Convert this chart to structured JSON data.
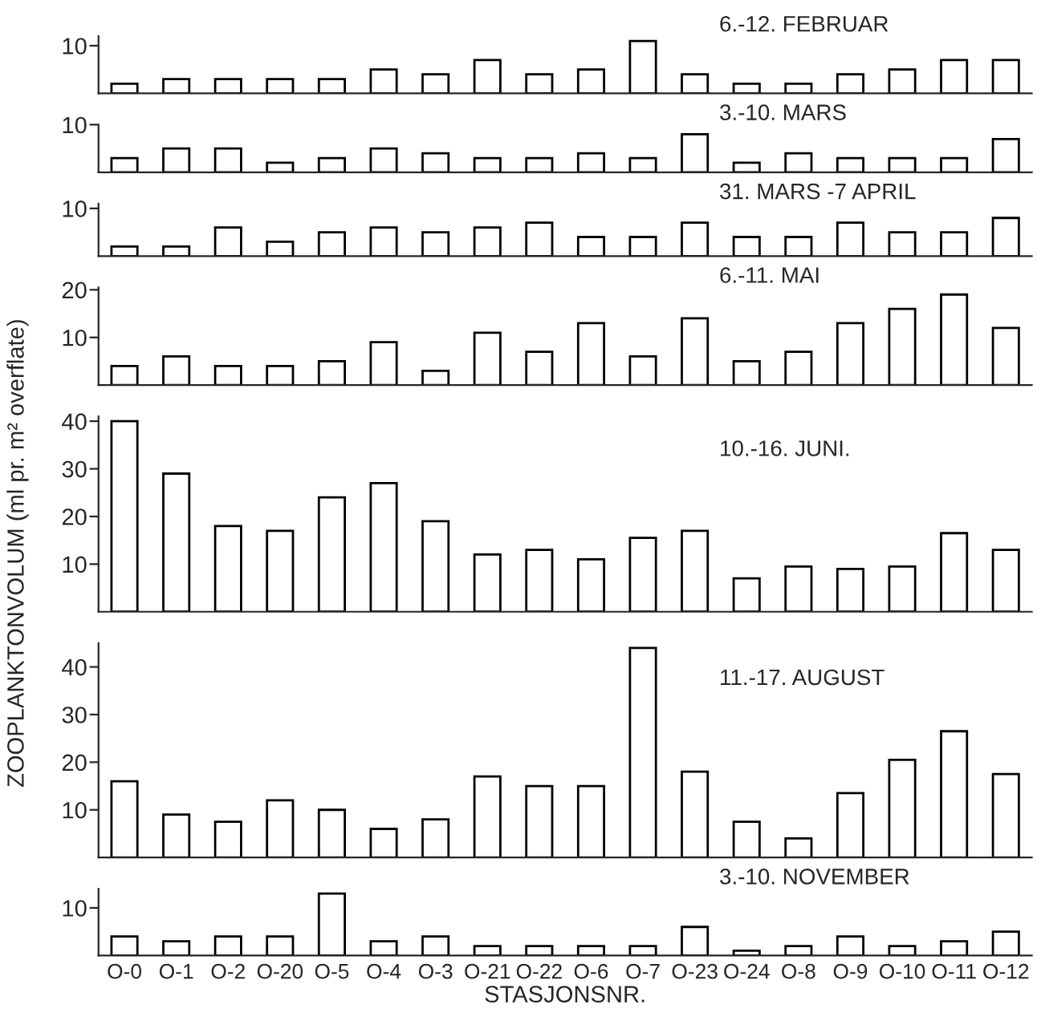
{
  "chart_data": [
    {
      "type": "bar",
      "title": "6.-12. FEBRUAR",
      "categories": [
        null,
        null,
        null,
        null,
        null,
        null,
        null,
        null,
        null,
        null,
        null,
        null,
        null,
        null,
        null,
        null,
        null,
        null
      ],
      "color": "#ffffff",
      "values": [
        2,
        3,
        3,
        3,
        3,
        5,
        4,
        7,
        4,
        5,
        11,
        4,
        2,
        2,
        4,
        5,
        7,
        7
      ],
      "ylim": [
        0,
        12
      ],
      "yticks": [
        10
      ],
      "tick_labels": "y"
    },
    {
      "type": "bar",
      "title": "3.-10. MARS",
      "categories": [
        null,
        null,
        null,
        null,
        null,
        null,
        null,
        null,
        null,
        null,
        null,
        null,
        null,
        null,
        null,
        null,
        null,
        null
      ],
      "color": "#ffffff",
      "values": [
        3,
        5,
        5,
        2,
        3,
        5,
        4,
        3,
        3,
        4,
        3,
        8,
        2,
        4,
        3,
        3,
        3,
        7
      ],
      "ylim": [
        0,
        10
      ],
      "yticks": [
        10
      ],
      "tick_labels": "y"
    },
    {
      "type": "bar",
      "title": "31. MARS -7 APRIL",
      "categories": [
        null,
        null,
        null,
        null,
        null,
        null,
        null,
        null,
        null,
        null,
        null,
        null,
        null,
        null,
        null,
        null,
        null,
        null
      ],
      "color": "#ffffff",
      "values": [
        2,
        2,
        6,
        3,
        5,
        6,
        5,
        6,
        7,
        4,
        4,
        7,
        4,
        4,
        7,
        5,
        5,
        8
      ],
      "ylim": [
        0,
        11
      ],
      "yticks": [
        10
      ],
      "tick_labels": "y"
    },
    {
      "type": "bar",
      "title": "6.-11. MAI",
      "categories": [
        null,
        null,
        null,
        null,
        null,
        null,
        null,
        null,
        null,
        null,
        null,
        null,
        null,
        null,
        null,
        null,
        null,
        null
      ],
      "color": "#ffffff",
      "values": [
        4,
        6,
        4,
        4,
        5,
        9,
        3,
        11,
        7,
        13,
        6,
        14,
        5,
        7,
        13,
        16,
        19,
        12
      ],
      "ylim": [
        0,
        20.5
      ],
      "yticks": [
        10,
        20
      ],
      "tick_labels": "y"
    },
    {
      "type": "bar",
      "title": "10.-16. JUNI.",
      "ylabel": "ZOOPLANKTONVOLUM (ml pr. m² overflate)",
      "categories": [
        null,
        null,
        null,
        null,
        null,
        null,
        null,
        null,
        null,
        null,
        null,
        null,
        null,
        null,
        null,
        null,
        null,
        null
      ],
      "color": "#ffffff",
      "values": [
        40,
        29,
        18,
        17,
        24,
        27,
        19,
        12,
        13,
        11,
        15.5,
        17,
        7,
        9.5,
        9,
        9.5,
        16.5,
        13
      ],
      "ylim": [
        0,
        41
      ],
      "yticks": [
        10,
        20,
        30,
        40
      ],
      "tick_labels": "y"
    },
    {
      "type": "bar",
      "title": "11.-17. AUGUST",
      "categories": [
        null,
        null,
        null,
        null,
        null,
        null,
        null,
        null,
        null,
        null,
        null,
        null,
        null,
        null,
        null,
        null,
        null,
        null
      ],
      "color": "#ffffff",
      "values": [
        16,
        9,
        7.5,
        12,
        10,
        6,
        8,
        17,
        15,
        15,
        44,
        18,
        7.5,
        4,
        13.5,
        20.5,
        26.5,
        17.5
      ],
      "ylim": [
        0,
        45
      ],
      "yticks": [
        10,
        20,
        30,
        40
      ],
      "tick_labels": "y"
    },
    {
      "type": "bar",
      "title": "3.-10. NOVEMBER",
      "xlabel": "STASJONSNR.",
      "categories": [
        "O-0",
        "O-1",
        "O-2",
        "O-20",
        "O-5",
        "O-4",
        "O-3",
        "O-21",
        "O-22",
        "O-6",
        "O-7",
        "O-23",
        "O-24",
        "O-8",
        "O-9",
        "O-10",
        "O-11",
        "O-12"
      ],
      "color": "#ffffff",
      "values": [
        4,
        3,
        4,
        4,
        13,
        3,
        4,
        2,
        2,
        2,
        2,
        6,
        1,
        2,
        4,
        2,
        3,
        5
      ],
      "ylim": [
        0,
        14
      ],
      "yticks": [
        10
      ]
    }
  ]
}
